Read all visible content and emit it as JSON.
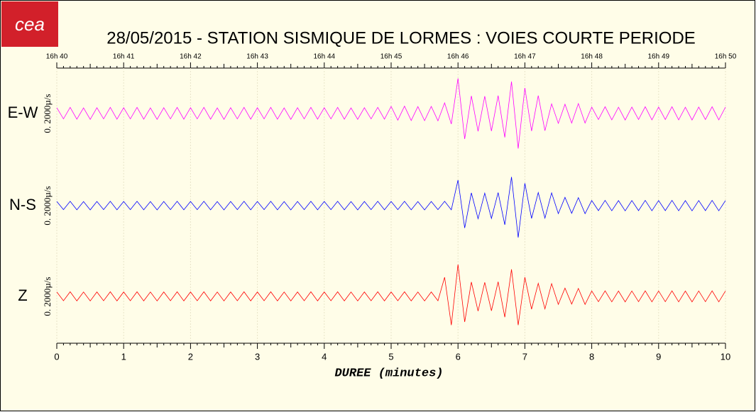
{
  "chart_data": {
    "type": "line",
    "logo": "cea",
    "title": "28/05/2015  -  STATION SISMIQUE DE LORMES : VOIES COURTE PERIODE",
    "xlabel": "DUREE (minutes)",
    "scale_label": "0. 2000µ/s",
    "xlim": [
      0,
      10
    ],
    "xticks": [
      0,
      1,
      2,
      3,
      4,
      5,
      6,
      7,
      8,
      9,
      10
    ],
    "x2ticks": [
      {
        "value": 0,
        "label": "16h 40"
      },
      {
        "value": 1,
        "label": "16h 41"
      },
      {
        "value": 2,
        "label": "16h 42"
      },
      {
        "value": 3,
        "label": "16h 43"
      },
      {
        "value": 4,
        "label": "16h 44"
      },
      {
        "value": 5,
        "label": "16h 45"
      },
      {
        "value": 6,
        "label": "16h 46"
      },
      {
        "value": 7,
        "label": "16h 47"
      },
      {
        "value": 8,
        "label": "16h 48"
      },
      {
        "value": 9,
        "label": "16h 49"
      },
      {
        "value": 10,
        "label": "16h 50"
      }
    ],
    "ylim": [
      -2000,
      2000
    ],
    "grid": true,
    "x": [
      0,
      0.1,
      0.2,
      0.3,
      0.4,
      0.5,
      0.6,
      0.7,
      0.8,
      0.9,
      1,
      1.1,
      1.2,
      1.3,
      1.4,
      1.5,
      1.6,
      1.7,
      1.8,
      1.9,
      2,
      2.1,
      2.2,
      2.3,
      2.4,
      2.5,
      2.6,
      2.7,
      2.8,
      2.9,
      3,
      3.1,
      3.2,
      3.3,
      3.4,
      3.5,
      3.6,
      3.7,
      3.8,
      3.9,
      4,
      4.1,
      4.2,
      4.3,
      4.4,
      4.5,
      4.6,
      4.7,
      4.8,
      4.9,
      5,
      5.1,
      5.2,
      5.3,
      5.4,
      5.5,
      5.6,
      5.7,
      5.8,
      5.9,
      6,
      6.1,
      6.2,
      6.3,
      6.4,
      6.5,
      6.6,
      6.7,
      6.8,
      6.9,
      7,
      7.1,
      7.2,
      7.3,
      7.4,
      7.5,
      7.6,
      7.7,
      7.8,
      7.9,
      8,
      8.1,
      8.2,
      8.3,
      8.4,
      8.5,
      8.6,
      8.7,
      8.8,
      8.9,
      9,
      9.1,
      9.2,
      9.3,
      9.4,
      9.5,
      9.6,
      9.7,
      9.8,
      9.9,
      10
    ],
    "series": [
      {
        "name": "E-W",
        "color": "#ff00ff",
        "values": [
          180,
          -170,
          190,
          -180,
          175,
          -185,
          180,
          -170,
          190,
          -180,
          180,
          -170,
          190,
          -180,
          175,
          -185,
          180,
          -170,
          190,
          -180,
          180,
          -170,
          190,
          -180,
          175,
          -185,
          180,
          -170,
          190,
          -180,
          180,
          -170,
          190,
          -180,
          175,
          -185,
          180,
          -170,
          190,
          -180,
          180,
          -170,
          190,
          -180,
          175,
          -185,
          180,
          -170,
          190,
          -180,
          220,
          -210,
          230,
          -220,
          215,
          -225,
          220,
          -230,
          330,
          -330,
          1100,
          -800,
          550,
          -560,
          540,
          -550,
          560,
          -750,
          1000,
          -1100,
          800,
          -550,
          560,
          -540,
          300,
          -310,
          290,
          -300,
          310,
          -300,
          200,
          -190,
          210,
          -200,
          195,
          -205,
          200,
          -190,
          210,
          -200,
          200,
          -190,
          210,
          -200,
          195,
          -205,
          200,
          -190,
          210,
          -200,
          200
        ]
      },
      {
        "name": "N-S",
        "color": "#0000ff",
        "values": [
          130,
          -125,
          135,
          -130,
          128,
          -132,
          130,
          -125,
          135,
          -130,
          130,
          -125,
          135,
          -130,
          128,
          -132,
          130,
          -125,
          135,
          -130,
          130,
          -125,
          135,
          -130,
          128,
          -132,
          130,
          -125,
          135,
          -130,
          130,
          -125,
          135,
          -130,
          128,
          -132,
          130,
          -125,
          135,
          -130,
          130,
          -125,
          135,
          -130,
          128,
          -132,
          130,
          -125,
          135,
          -130,
          130,
          -125,
          135,
          -130,
          128,
          -132,
          130,
          -125,
          135,
          -130,
          800,
          -700,
          400,
          -410,
          390,
          -400,
          410,
          -600,
          900,
          -1000,
          700,
          -400,
          410,
          -390,
          400,
          -250,
          260,
          -240,
          250,
          -250,
          160,
          -155,
          165,
          -160,
          158,
          -162,
          160,
          -155,
          165,
          -160,
          160,
          -155,
          165,
          -160,
          158,
          -162,
          160,
          -155,
          165,
          -160,
          160
        ]
      },
      {
        "name": "Z",
        "color": "#ff0000",
        "values": [
          140,
          -135,
          145,
          -140,
          138,
          -142,
          140,
          -135,
          145,
          -140,
          140,
          -135,
          145,
          -140,
          138,
          -142,
          140,
          -135,
          145,
          -140,
          140,
          -135,
          145,
          -140,
          138,
          -142,
          140,
          -135,
          145,
          -140,
          140,
          -135,
          145,
          -140,
          138,
          -142,
          140,
          -135,
          145,
          -140,
          140,
          -135,
          145,
          -140,
          138,
          -142,
          140,
          -135,
          145,
          -140,
          140,
          -135,
          145,
          -140,
          138,
          -142,
          140,
          -135,
          600,
          -900,
          1000,
          -800,
          450,
          -460,
          440,
          -450,
          460,
          -650,
          850,
          -900,
          600,
          -400,
          410,
          -390,
          400,
          -250,
          260,
          -240,
          250,
          -250,
          170,
          -165,
          175,
          -170,
          168,
          -172,
          170,
          -165,
          175,
          -170,
          170,
          -165,
          175,
          -170,
          168,
          -172,
          170,
          -165,
          175,
          -170,
          170
        ]
      }
    ]
  }
}
